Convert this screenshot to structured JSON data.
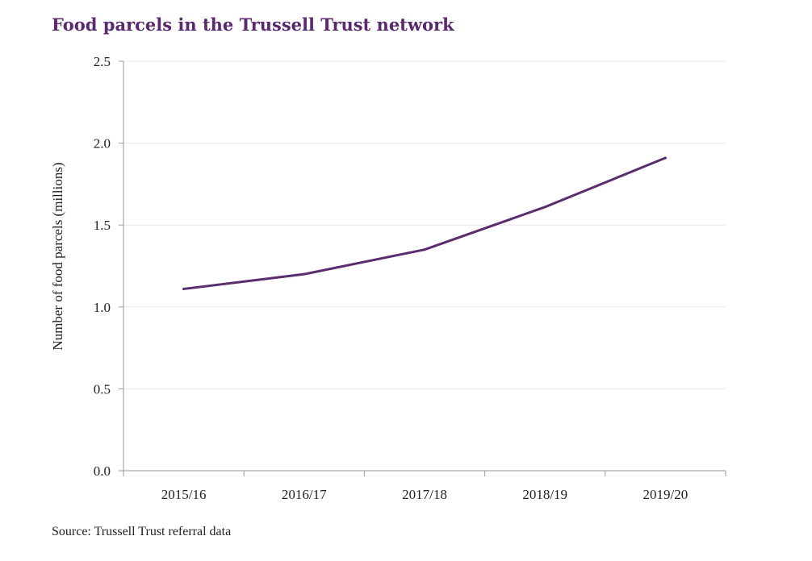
{
  "title": "Food parcels in the Trussell Trust network",
  "source": "Source: Trussell Trust referral data",
  "colors": {
    "title": "#5a2a6e",
    "line": "#5a2d6e",
    "grid": "#e8e8e8",
    "axis": "#999999"
  },
  "chart_data": {
    "type": "line",
    "title": "Food parcels in the Trussell Trust network",
    "xlabel": "",
    "ylabel": "Number of food parcels (millions)",
    "categories": [
      "2015/16",
      "2016/17",
      "2017/18",
      "2018/19",
      "2019/20"
    ],
    "series": [
      {
        "values": [
          1.11,
          1.2,
          1.35,
          1.61,
          1.91
        ]
      }
    ],
    "ylim": [
      0,
      2.5
    ],
    "yticks": [
      "0.0",
      "0.5",
      "1.0",
      "1.5",
      "2.0",
      "2.5"
    ],
    "ytick_values": [
      0,
      0.5,
      1.0,
      1.5,
      2.0,
      2.5
    ],
    "grid": "horizontal",
    "legend": "none"
  }
}
